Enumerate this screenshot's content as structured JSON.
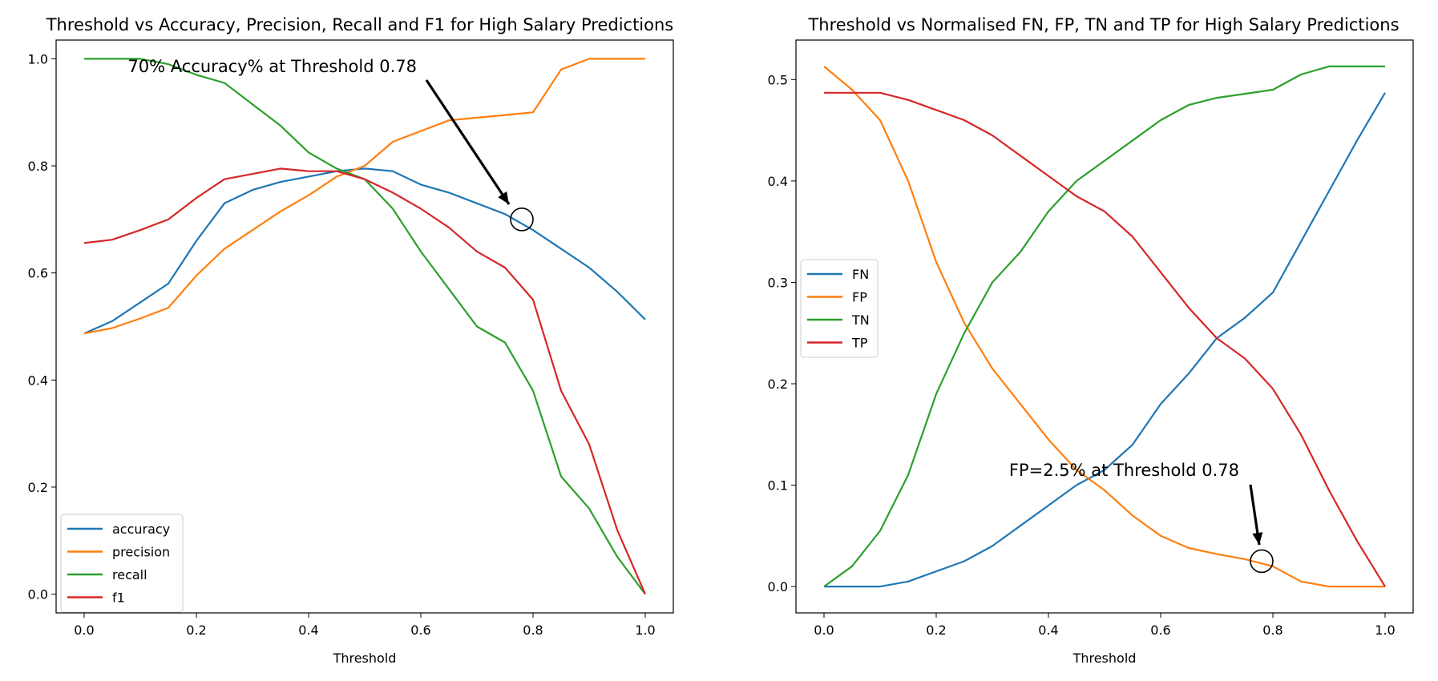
{
  "chart_data": [
    {
      "type": "line",
      "title": "Threshold vs Accuracy, Precision, Recall and F1 for High Salary Predictions",
      "xlabel": "Threshold",
      "ylabel": "",
      "xlim": [
        -0.05,
        1.05
      ],
      "ylim": [
        -0.035,
        1.035
      ],
      "xticks": [
        0.0,
        0.2,
        0.4,
        0.6,
        0.8,
        1.0
      ],
      "xtick_labels": [
        "0.0",
        "0.2",
        "0.4",
        "0.6",
        "0.8",
        "1.0"
      ],
      "yticks": [
        0.0,
        0.2,
        0.4,
        0.6,
        0.8,
        1.0
      ],
      "ytick_labels": [
        "0.0",
        "0.2",
        "0.4",
        "0.6",
        "0.8",
        "1.0"
      ],
      "legend_position": "lower-left",
      "x": [
        0.0,
        0.05,
        0.1,
        0.15,
        0.2,
        0.25,
        0.3,
        0.35,
        0.4,
        0.45,
        0.5,
        0.55,
        0.6,
        0.65,
        0.7,
        0.75,
        0.8,
        0.85,
        0.9,
        0.95,
        1.0
      ],
      "series": [
        {
          "name": "accuracy",
          "color": "#1f77b4",
          "values": [
            0.487,
            0.51,
            0.545,
            0.58,
            0.66,
            0.73,
            0.755,
            0.77,
            0.78,
            0.79,
            0.795,
            0.79,
            0.765,
            0.75,
            0.73,
            0.71,
            0.68,
            0.645,
            0.61,
            0.565,
            0.513
          ]
        },
        {
          "name": "precision",
          "color": "#ff7f0e",
          "values": [
            0.487,
            0.497,
            0.515,
            0.535,
            0.595,
            0.645,
            0.68,
            0.715,
            0.745,
            0.78,
            0.8,
            0.845,
            0.865,
            0.885,
            0.89,
            0.895,
            0.9,
            0.98,
            1.0,
            1.0,
            1.0
          ]
        },
        {
          "name": "recall",
          "color": "#2ca02c",
          "values": [
            1.0,
            1.0,
            1.0,
            0.99,
            0.97,
            0.955,
            0.915,
            0.875,
            0.825,
            0.795,
            0.775,
            0.72,
            0.64,
            0.57,
            0.5,
            0.47,
            0.38,
            0.22,
            0.16,
            0.07,
            0.0
          ]
        },
        {
          "name": "f1",
          "color": "#d62728",
          "values": [
            0.656,
            0.662,
            0.68,
            0.7,
            0.74,
            0.775,
            0.785,
            0.795,
            0.79,
            0.79,
            0.775,
            0.75,
            0.72,
            0.685,
            0.64,
            0.61,
            0.55,
            0.38,
            0.28,
            0.12,
            0.0
          ]
        }
      ],
      "annotation": {
        "text": "70% Accuracy% at Threshold 0.78",
        "point": [
          0.78,
          0.7
        ]
      }
    },
    {
      "type": "line",
      "title": "Threshold vs Normalised FN, FP, TN and TP for High Salary Predictions",
      "xlabel": "Threshold",
      "ylabel": "",
      "xlim": [
        -0.05,
        1.05
      ],
      "ylim": [
        -0.026,
        0.539
      ],
      "xticks": [
        0.0,
        0.2,
        0.4,
        0.6,
        0.8,
        1.0
      ],
      "xtick_labels": [
        "0.0",
        "0.2",
        "0.4",
        "0.6",
        "0.8",
        "1.0"
      ],
      "yticks": [
        0.0,
        0.1,
        0.2,
        0.3,
        0.4,
        0.5
      ],
      "ytick_labels": [
        "0.0",
        "0.1",
        "0.2",
        "0.3",
        "0.4",
        "0.5"
      ],
      "legend_position": "center-left",
      "x": [
        0.0,
        0.05,
        0.1,
        0.15,
        0.2,
        0.25,
        0.3,
        0.35,
        0.4,
        0.45,
        0.5,
        0.55,
        0.6,
        0.65,
        0.7,
        0.75,
        0.8,
        0.85,
        0.9,
        0.95,
        1.0
      ],
      "series": [
        {
          "name": "FN",
          "color": "#1f77b4",
          "values": [
            0.0,
            0.0,
            0.0,
            0.005,
            0.015,
            0.025,
            0.04,
            0.06,
            0.08,
            0.1,
            0.115,
            0.14,
            0.18,
            0.21,
            0.245,
            0.265,
            0.29,
            0.34,
            0.39,
            0.44,
            0.487
          ]
        },
        {
          "name": "FP",
          "color": "#ff7f0e",
          "values": [
            0.513,
            0.49,
            0.46,
            0.4,
            0.32,
            0.26,
            0.215,
            0.18,
            0.145,
            0.115,
            0.095,
            0.07,
            0.05,
            0.038,
            0.032,
            0.027,
            0.02,
            0.005,
            0.0,
            0.0,
            0.0
          ]
        },
        {
          "name": "TN",
          "color": "#2ca02c",
          "values": [
            0.0,
            0.02,
            0.055,
            0.11,
            0.19,
            0.25,
            0.3,
            0.33,
            0.37,
            0.4,
            0.42,
            0.44,
            0.46,
            0.475,
            0.482,
            0.486,
            0.49,
            0.505,
            0.513,
            0.513,
            0.513
          ]
        },
        {
          "name": "TP",
          "color": "#d62728",
          "values": [
            0.487,
            0.487,
            0.487,
            0.48,
            0.47,
            0.46,
            0.445,
            0.425,
            0.405,
            0.385,
            0.37,
            0.345,
            0.31,
            0.275,
            0.245,
            0.225,
            0.195,
            0.15,
            0.095,
            0.045,
            0.0
          ]
        }
      ],
      "annotation": {
        "text": "FP=2.5% at Threshold 0.78",
        "point": [
          0.78,
          0.025
        ]
      }
    }
  ]
}
